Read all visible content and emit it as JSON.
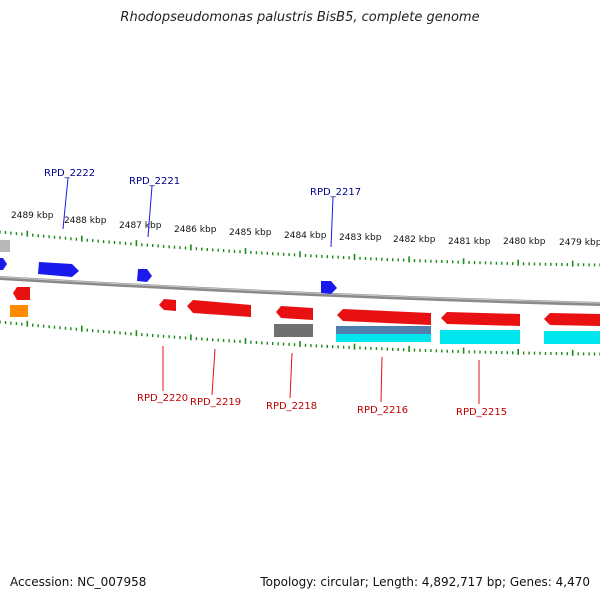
{
  "title": "Rhodopseudomonas palustris BisB5, complete genome",
  "footer": {
    "accession": "Accession: NC_007958",
    "topology": "Topology: circular; Length: 4,892,717 bp; Genes: 4,470"
  },
  "colors": {
    "forward_gene": "#1a1aee",
    "reverse_gene": "#e81010",
    "gray_gene": "#707070",
    "orange_gene": "#ff8c00",
    "cyan_gene": "#00e5ee",
    "steel_gene": "#4f7fae",
    "backbone": "#8a8a8a",
    "ticks": "#1a8a1a",
    "forward_label": "#000090",
    "reverse_label": "#c00000"
  },
  "scale_labels": [
    "2489 kbp",
    "2488 kbp",
    "2487 kbp",
    "2486 kbp",
    "2485 kbp",
    "2484 kbp",
    "2483 kbp",
    "2482 kbp",
    "2481 kbp",
    "2480 kbp",
    "2479 kbp"
  ],
  "forward_labels": [
    "RPD_2222",
    "RPD_2221",
    "RPD_2217"
  ],
  "reverse_labels": [
    "RPD_2220",
    "RPD_2219",
    "RPD_2218",
    "RPD_2216",
    "RPD_2215"
  ]
}
